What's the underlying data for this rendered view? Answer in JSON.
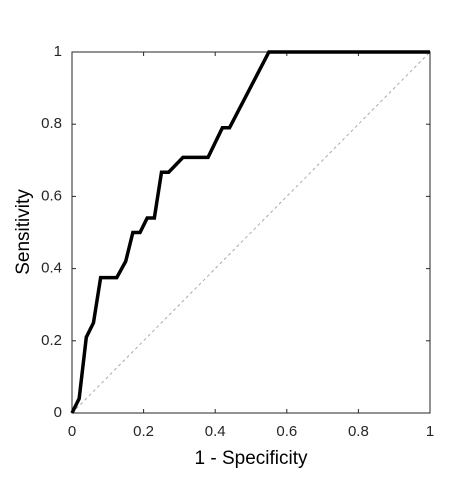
{
  "chart_data": {
    "type": "line",
    "xlabel": "1 - Specificity",
    "ylabel": "Sensitivity",
    "x": [
      0,
      0.02,
      0.04,
      0.06,
      0.08,
      0.125,
      0.15,
      0.17,
      0.19,
      0.21,
      0.23,
      0.25,
      0.27,
      0.31,
      0.38,
      0.42,
      0.44,
      0.55,
      1
    ],
    "series": [
      {
        "color": "#000000",
        "values": [
          0,
          0.04,
          0.21,
          0.25,
          0.375,
          0.375,
          0.42,
          0.5,
          0.5,
          0.54,
          0.54,
          0.667,
          0.667,
          0.708,
          0.708,
          0.79,
          0.79,
          1,
          1
        ]
      }
    ],
    "xlim": [
      0,
      1
    ],
    "ylim": [
      0,
      1
    ],
    "xticks": [
      0,
      0.2,
      0.4,
      0.6,
      0.8,
      1
    ],
    "yticks": [
      0,
      0.2,
      0.4,
      0.6,
      0.8,
      1
    ],
    "diagonal": true
  }
}
